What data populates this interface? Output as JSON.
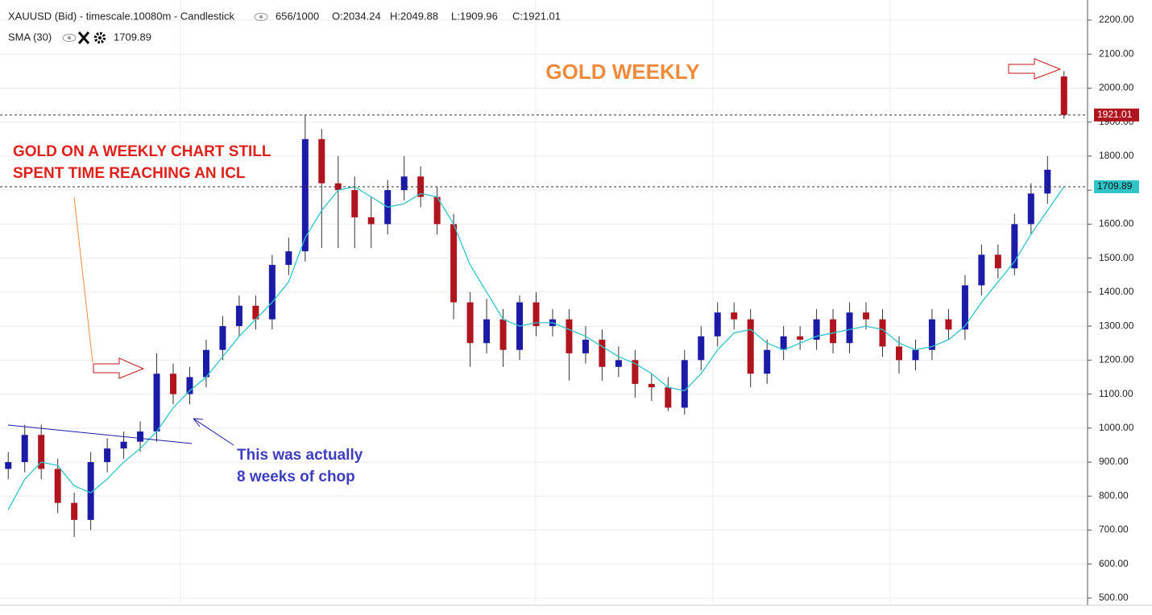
{
  "chart_data": {
    "type": "candlestick",
    "header": {
      "symbol": "XAUUSD (Bid) - timescale.10080m - Candlestick",
      "count": "656/1000",
      "open": "O:2034.24",
      "high": "H:2049.88",
      "low": "L:1909.96",
      "close": "C:1921.01"
    },
    "indicator": {
      "name": "SMA (30)",
      "color": "#2ec4c8"
    },
    "title": "GOLD WEEKLY",
    "annotations": [
      "GOLD ON A WEEKLY CHART  STILL",
      "SPENT TIME REACHING AN ICL",
      "This was actually",
      "8 weeks of chop"
    ],
    "up_color": "#1b1ba8",
    "down_color": "#b0141e",
    "open": [
      880,
      900,
      980,
      880,
      780,
      730,
      900,
      940,
      960,
      990,
      1160,
      1100,
      1150,
      1230,
      1300,
      1360,
      1320,
      1480,
      1520,
      1850,
      1720,
      1700,
      1620,
      1600,
      1700,
      1740,
      1680,
      1600,
      1370,
      1250,
      1320,
      1230,
      1370,
      1300,
      1320,
      1220,
      1260,
      1180,
      1200,
      1130,
      1120,
      1060,
      1200,
      1270,
      1340,
      1320,
      1160,
      1230,
      1270,
      1260,
      1320,
      1250,
      1340,
      1320,
      1240,
      1200,
      1230,
      1320,
      1290,
      1420,
      1510,
      1470,
      1600,
      1690,
      2034.24
    ],
    "high": [
      930,
      1010,
      1010,
      910,
      810,
      930,
      970,
      990,
      1020,
      1220,
      1190,
      1180,
      1260,
      1330,
      1390,
      1390,
      1510,
      1560,
      1920,
      1880,
      1800,
      1740,
      1680,
      1730,
      1800,
      1770,
      1710,
      1630,
      1400,
      1380,
      1350,
      1390,
      1400,
      1350,
      1350,
      1300,
      1290,
      1240,
      1230,
      1160,
      1150,
      1230,
      1300,
      1370,
      1370,
      1350,
      1260,
      1300,
      1300,
      1350,
      1350,
      1370,
      1370,
      1350,
      1270,
      1260,
      1350,
      1350,
      1450,
      1540,
      1540,
      1630,
      1720,
      1800,
      2049.88
    ],
    "low": [
      850,
      870,
      850,
      750,
      680,
      700,
      870,
      910,
      930,
      960,
      1070,
      1070,
      1120,
      1200,
      1270,
      1290,
      1290,
      1450,
      1490,
      1530,
      1530,
      1530,
      1530,
      1570,
      1670,
      1650,
      1570,
      1320,
      1180,
      1220,
      1180,
      1200,
      1270,
      1270,
      1140,
      1190,
      1140,
      1150,
      1090,
      1080,
      1050,
      1040,
      1170,
      1240,
      1290,
      1120,
      1130,
      1200,
      1230,
      1230,
      1220,
      1220,
      1290,
      1210,
      1160,
      1170,
      1200,
      1260,
      1260,
      1390,
      1440,
      1450,
      1570,
      1660,
      1909.96
    ],
    "close": [
      900,
      980,
      880,
      780,
      730,
      900,
      940,
      960,
      990,
      1160,
      1100,
      1150,
      1230,
      1300,
      1360,
      1320,
      1480,
      1520,
      1850,
      1720,
      1700,
      1620,
      1600,
      1700,
      1740,
      1680,
      1600,
      1370,
      1250,
      1320,
      1230,
      1370,
      1300,
      1320,
      1220,
      1260,
      1180,
      1200,
      1130,
      1120,
      1060,
      1200,
      1270,
      1340,
      1320,
      1160,
      1230,
      1270,
      1260,
      1320,
      1250,
      1340,
      1320,
      1240,
      1200,
      1230,
      1320,
      1290,
      1420,
      1510,
      1470,
      1600,
      1690,
      1760,
      1921.01
    ],
    "sma": [
      760,
      850,
      900,
      890,
      830,
      810,
      850,
      900,
      940,
      990,
      1060,
      1110,
      1150,
      1210,
      1270,
      1320,
      1370,
      1430,
      1560,
      1640,
      1700,
      1710,
      1680,
      1650,
      1660,
      1690,
      1680,
      1600,
      1480,
      1400,
      1320,
      1300,
      1310,
      1310,
      1290,
      1270,
      1240,
      1210,
      1190,
      1160,
      1120,
      1110,
      1160,
      1230,
      1280,
      1290,
      1250,
      1230,
      1250,
      1270,
      1280,
      1290,
      1300,
      1290,
      1250,
      1230,
      1240,
      1260,
      1300,
      1370,
      1430,
      1490,
      1570,
      1640,
      1709.89
    ],
    "ylim": [
      500,
      2200
    ],
    "yticks": [
      {
        "value": 500,
        "label": "500.00"
      },
      {
        "value": 600,
        "label": "600.00"
      },
      {
        "value": 700,
        "label": "700.00"
      },
      {
        "value": 800,
        "label": "800.00"
      },
      {
        "value": 900,
        "label": "900.00"
      },
      {
        "value": 1000,
        "label": "1000.00"
      },
      {
        "value": 1100,
        "label": "1100.00"
      },
      {
        "value": 1200,
        "label": "1200.00"
      },
      {
        "value": 1300,
        "label": "1300.00"
      },
      {
        "value": 1400,
        "label": "1400.00"
      },
      {
        "value": 1500,
        "label": "1500.00"
      },
      {
        "value": 1600,
        "label": "1600.00"
      },
      {
        "value": 1700,
        "label": "1700.00"
      },
      {
        "value": 1800,
        "label": "1800.00"
      },
      {
        "value": 1900,
        "label": "1900.00"
      },
      {
        "value": 2000,
        "label": "2000.00"
      },
      {
        "value": 2100,
        "label": "2100.00"
      },
      {
        "value": 2200,
        "label": "2200.00"
      }
    ],
    "grid": true
  }
}
